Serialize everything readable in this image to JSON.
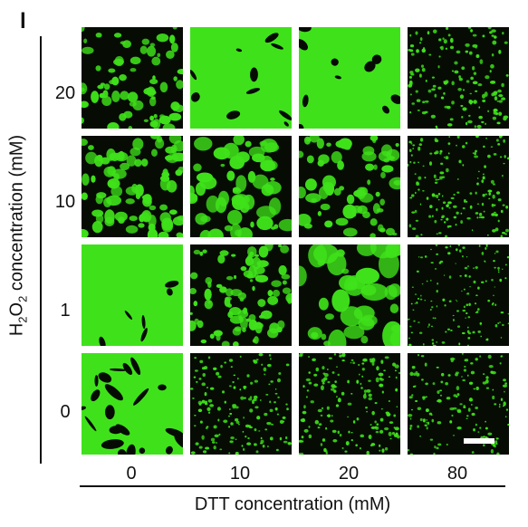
{
  "panel_letter": "l",
  "y_axis": {
    "title_prefix": "H",
    "title_sub1": "2",
    "title_mid": "O",
    "title_sub2": "2",
    "title_suffix": " concentration (mM)",
    "row_labels": [
      "20",
      "10",
      "1",
      "0"
    ]
  },
  "x_axis": {
    "title": "DTT concentration (mM)",
    "col_labels": [
      "0",
      "10",
      "20",
      "80"
    ]
  },
  "colors": {
    "droplet": "#3fe21a",
    "background": "#060c04",
    "scale_bar": "#ffffff"
  }
}
